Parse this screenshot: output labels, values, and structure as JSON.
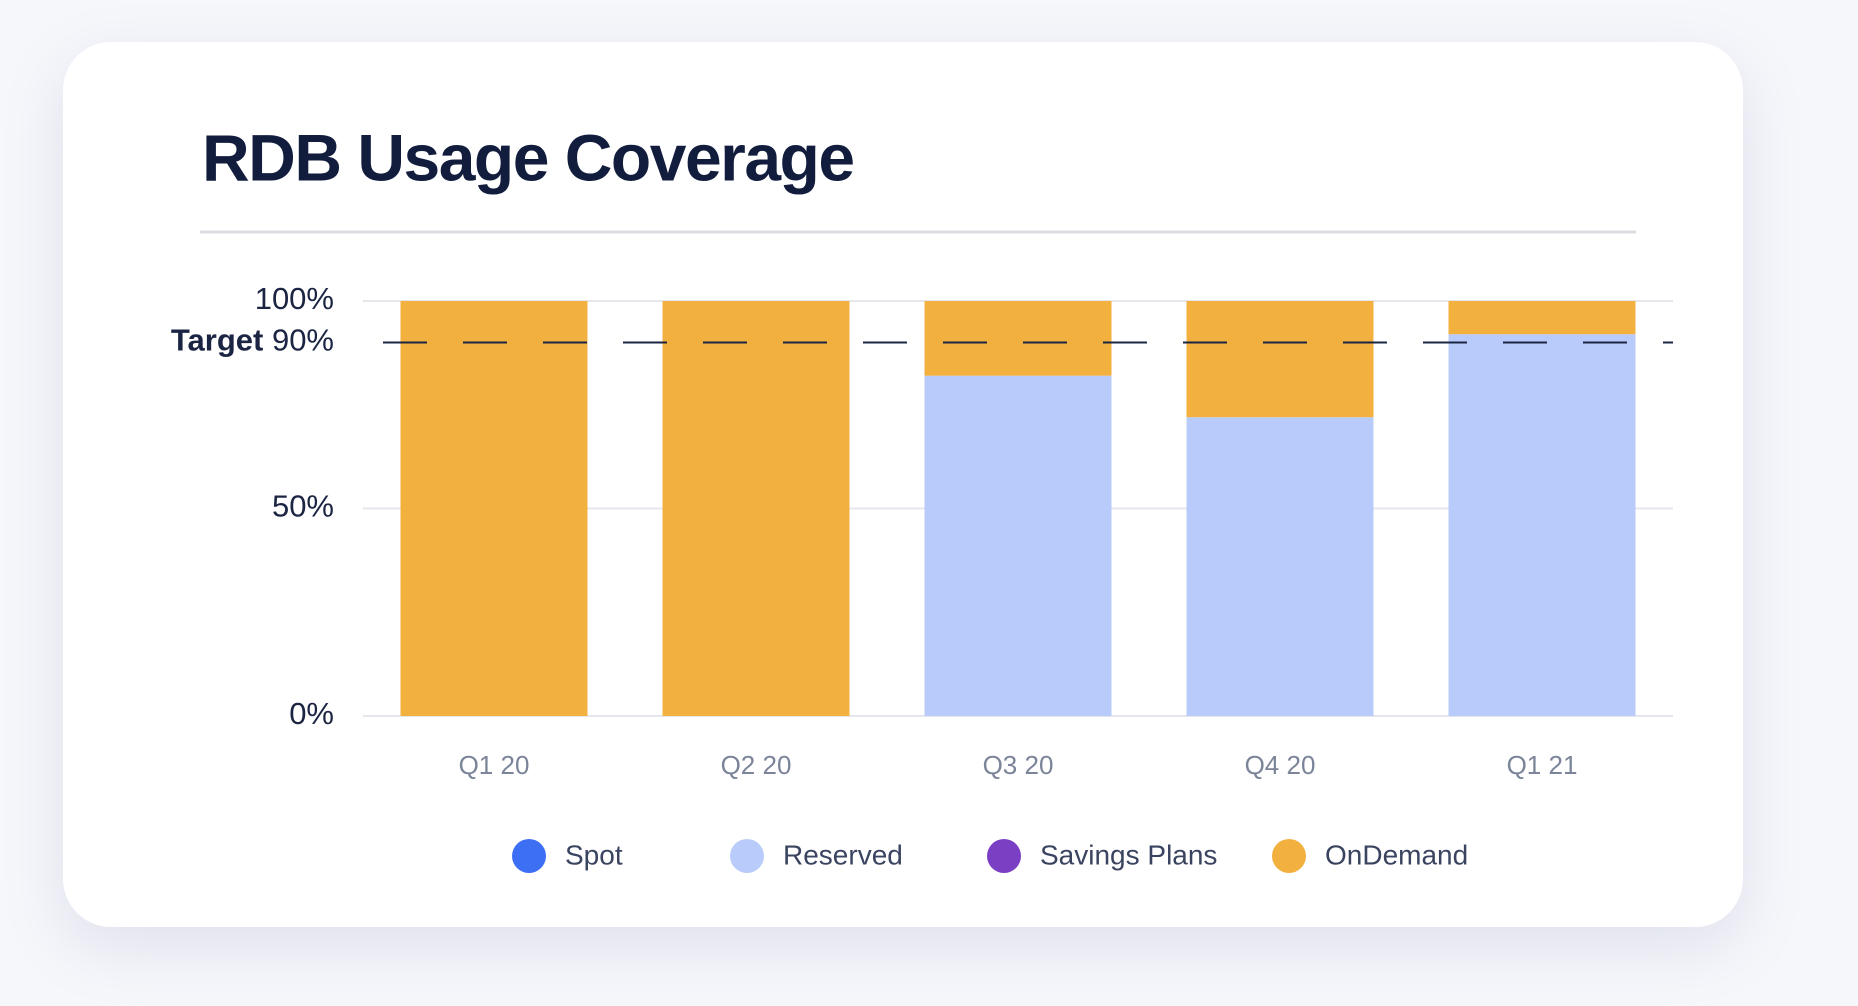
{
  "chart_data": {
    "type": "stacked_bar",
    "title": "RDB Usage Coverage",
    "categories": [
      "Q1 20",
      "Q2 20",
      "Q3 20",
      "Q4 20",
      "Q1 21"
    ],
    "series": [
      {
        "name": "Spot",
        "color": "#3d6ff5",
        "values": [
          0,
          0,
          0,
          0,
          0
        ]
      },
      {
        "name": "Reserved",
        "color": "#b9cbfa",
        "values": [
          0,
          0,
          82,
          72,
          92
        ]
      },
      {
        "name": "Savings Plans",
        "color": "#7b3fc4",
        "values": [
          0,
          0,
          0,
          0,
          0
        ]
      },
      {
        "name": "OnDemand",
        "color": "#f2b03f",
        "values": [
          100,
          100,
          18,
          28,
          8
        ]
      }
    ],
    "ylim": [
      0,
      100
    ],
    "yticks": [
      {
        "value": 0,
        "label": "0%"
      },
      {
        "value": 50,
        "label": "50%"
      },
      {
        "value": 100,
        "label": "100%"
      }
    ],
    "grid": true,
    "target": {
      "label": "Target",
      "value": 90,
      "value_label": "90%"
    },
    "legend": "bottom"
  }
}
